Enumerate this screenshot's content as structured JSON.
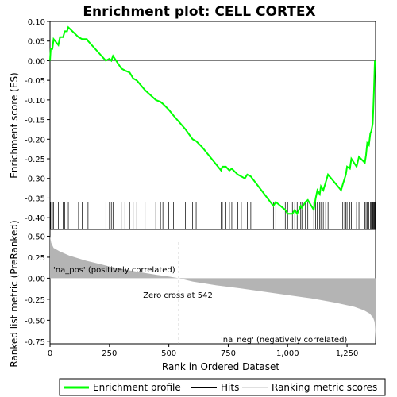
{
  "chart_data": {
    "type": "line",
    "title": "Enrichment plot: CELL CORTEX",
    "top_panel": {
      "ylabel": "Enrichment score (ES)",
      "ylim": [
        -0.43,
        0.1
      ],
      "yticks": [
        0.1,
        0.05,
        0.0,
        -0.05,
        -0.1,
        -0.15,
        -0.2,
        -0.25,
        -0.3,
        -0.35,
        -0.4
      ],
      "ytick_labels": [
        "0.10",
        "0.05",
        "0.00",
        "-0.05",
        "-0.10",
        "-0.15",
        "-0.20",
        "-0.25",
        "-0.30",
        "-0.35",
        "-0.40"
      ],
      "series_name": "Enrichment profile",
      "line_color": "#00ff00",
      "points": [
        [
          0,
          0.0
        ],
        [
          3,
          0.03
        ],
        [
          10,
          0.03
        ],
        [
          15,
          0.055
        ],
        [
          35,
          0.04
        ],
        [
          42,
          0.06
        ],
        [
          55,
          0.06
        ],
        [
          62,
          0.075
        ],
        [
          72,
          0.075
        ],
        [
          77,
          0.085
        ],
        [
          120,
          0.06
        ],
        [
          135,
          0.055
        ],
        [
          155,
          0.055
        ],
        [
          160,
          0.05
        ],
        [
          235,
          0.0
        ],
        [
          250,
          0.005
        ],
        [
          258,
          0.0
        ],
        [
          265,
          0.012
        ],
        [
          300,
          -0.02
        ],
        [
          315,
          -0.025
        ],
        [
          335,
          -0.03
        ],
        [
          350,
          -0.045
        ],
        [
          365,
          -0.05
        ],
        [
          400,
          -0.075
        ],
        [
          445,
          -0.1
        ],
        [
          465,
          -0.105
        ],
        [
          475,
          -0.11
        ],
        [
          500,
          -0.125
        ],
        [
          520,
          -0.14
        ],
        [
          570,
          -0.175
        ],
        [
          600,
          -0.2
        ],
        [
          615,
          -0.205
        ],
        [
          640,
          -0.22
        ],
        [
          720,
          -0.28
        ],
        [
          725,
          -0.27
        ],
        [
          740,
          -0.27
        ],
        [
          755,
          -0.28
        ],
        [
          765,
          -0.275
        ],
        [
          790,
          -0.29
        ],
        [
          805,
          -0.295
        ],
        [
          820,
          -0.3
        ],
        [
          830,
          -0.29
        ],
        [
          845,
          -0.295
        ],
        [
          940,
          -0.37
        ],
        [
          950,
          -0.36
        ],
        [
          990,
          -0.38
        ],
        [
          1000,
          -0.39
        ],
        [
          1020,
          -0.39
        ],
        [
          1030,
          -0.38
        ],
        [
          1040,
          -0.39
        ],
        [
          1055,
          -0.37
        ],
        [
          1060,
          -0.375
        ],
        [
          1075,
          -0.36
        ],
        [
          1085,
          -0.355
        ],
        [
          1110,
          -0.38
        ],
        [
          1118,
          -0.35
        ],
        [
          1125,
          -0.33
        ],
        [
          1135,
          -0.34
        ],
        [
          1140,
          -0.32
        ],
        [
          1150,
          -0.33
        ],
        [
          1160,
          -0.31
        ],
        [
          1170,
          -0.29
        ],
        [
          1225,
          -0.33
        ],
        [
          1232,
          -0.315
        ],
        [
          1240,
          -0.3
        ],
        [
          1245,
          -0.29
        ],
        [
          1250,
          -0.27
        ],
        [
          1262,
          -0.275
        ],
        [
          1268,
          -0.25
        ],
        [
          1290,
          -0.27
        ],
        [
          1300,
          -0.245
        ],
        [
          1325,
          -0.26
        ],
        [
          1330,
          -0.24
        ],
        [
          1335,
          -0.21
        ],
        [
          1342,
          -0.215
        ],
        [
          1348,
          -0.185
        ],
        [
          1352,
          -0.18
        ],
        [
          1358,
          -0.16
        ],
        [
          1360,
          -0.13
        ],
        [
          1363,
          -0.08
        ],
        [
          1365,
          -0.04
        ],
        [
          1367,
          0.0
        ]
      ]
    },
    "hits": [
      3,
      10,
      15,
      35,
      42,
      55,
      62,
      72,
      77,
      120,
      135,
      155,
      160,
      235,
      250,
      258,
      265,
      300,
      315,
      335,
      350,
      365,
      400,
      445,
      465,
      475,
      500,
      520,
      570,
      600,
      615,
      640,
      720,
      725,
      740,
      755,
      765,
      790,
      805,
      820,
      830,
      845,
      940,
      950,
      990,
      1000,
      1020,
      1030,
      1040,
      1055,
      1060,
      1075,
      1085,
      1110,
      1118,
      1125,
      1135,
      1140,
      1150,
      1160,
      1170,
      1225,
      1232,
      1240,
      1245,
      1250,
      1262,
      1268,
      1290,
      1300,
      1325,
      1330,
      1335,
      1342,
      1348,
      1352,
      1358,
      1360,
      1363,
      1365,
      1367
    ],
    "bottom_panel": {
      "ylabel": "Ranked list metric (PreRanked)",
      "xlabel": "Rank in Ordered Dataset",
      "ylim": [
        -0.78,
        0.58
      ],
      "yticks": [
        0.5,
        0.25,
        0.0,
        -0.25,
        -0.5,
        -0.75
      ],
      "ytick_labels": [
        "0.50",
        "0.25",
        "0.00",
        "-0.25",
        "-0.50",
        "-0.75"
      ],
      "xlim": [
        0,
        1370
      ],
      "xticks": [
        0,
        250,
        500,
        750,
        1000,
        1250
      ],
      "xtick_labels": [
        "0",
        "250",
        "500",
        "750",
        "1,000",
        "1,250"
      ],
      "metric_curve": [
        [
          0,
          0.5
        ],
        [
          5,
          0.42
        ],
        [
          15,
          0.36
        ],
        [
          40,
          0.32
        ],
        [
          80,
          0.27
        ],
        [
          150,
          0.21
        ],
        [
          250,
          0.14
        ],
        [
          350,
          0.085
        ],
        [
          450,
          0.04
        ],
        [
          500,
          0.02
        ],
        [
          542,
          0.0
        ],
        [
          600,
          -0.04
        ],
        [
          700,
          -0.085
        ],
        [
          800,
          -0.12
        ],
        [
          900,
          -0.16
        ],
        [
          1000,
          -0.2
        ],
        [
          1100,
          -0.24
        ],
        [
          1200,
          -0.29
        ],
        [
          1280,
          -0.34
        ],
        [
          1320,
          -0.38
        ],
        [
          1345,
          -0.42
        ],
        [
          1360,
          -0.47
        ],
        [
          1366,
          -0.52
        ],
        [
          1368,
          -0.6
        ],
        [
          1370,
          -0.75
        ]
      ],
      "zero_cross_rank": 542,
      "zero_cross_label": "Zero cross at 542",
      "pos_label": "'na_pos' (positively correlated)",
      "neg_label": "'na_neg' (negatively correlated)"
    },
    "legend": [
      {
        "label": "Enrichment profile",
        "color": "#00ff00"
      },
      {
        "label": "Hits",
        "color": "#000000"
      },
      {
        "label": "Ranking metric scores",
        "color": "#c0c0c0"
      }
    ],
    "colors": {
      "pos_label": "#ff0000",
      "neg_label": "#0000ff",
      "metric_fill": "#b4b4b4",
      "zero_line": "#b0b0b0"
    }
  }
}
